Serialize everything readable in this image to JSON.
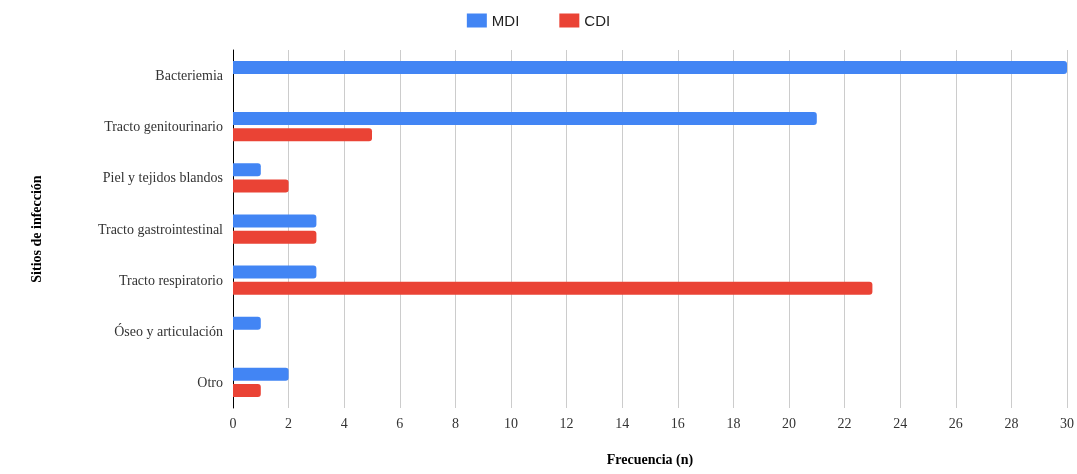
{
  "chart_data": {
    "type": "bar",
    "orientation": "horizontal",
    "xlabel": "Frecuencia (n)",
    "ylabel": "Sitios de infección",
    "categories": [
      "Bacteriemia",
      "Tracto genitourinario",
      "Piel y tejidos blandos",
      "Tracto gastrointestinal",
      "Tracto respiratorio",
      "Óseo y articulación",
      "Otro"
    ],
    "series": [
      {
        "name": "MDI",
        "color": "#4285f4",
        "values": [
          30,
          21,
          1,
          3,
          3,
          1,
          2
        ]
      },
      {
        "name": "CDI",
        "color": "#ea4335",
        "values": [
          null,
          5,
          2,
          3,
          23,
          null,
          1
        ]
      }
    ],
    "xlim": [
      0,
      30
    ],
    "xticks": [
      0,
      2,
      4,
      6,
      8,
      10,
      12,
      14,
      16,
      18,
      20,
      22,
      24,
      26,
      28,
      30
    ],
    "grid": "x",
    "legend": "top"
  }
}
